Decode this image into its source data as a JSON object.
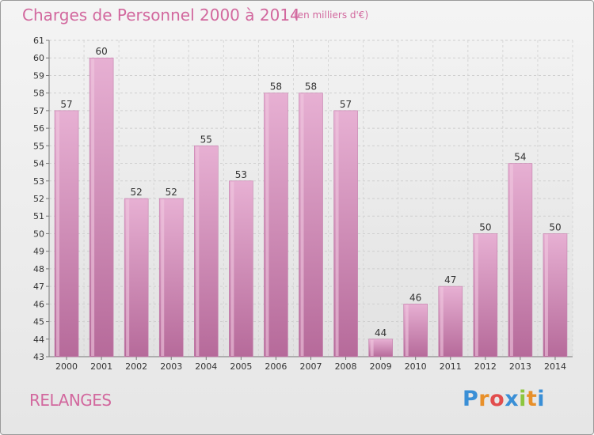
{
  "title": "Charges de Personnel 2000 à 2014",
  "unit_note": "(en milliers d'€)",
  "municipality": "RELANGES",
  "logo": {
    "letters": [
      "P",
      "r",
      "o",
      "x",
      "i",
      "t",
      "i"
    ],
    "colors": [
      "#3a8fd6",
      "#e8902a",
      "#e24d4d",
      "#3a8fd6",
      "#8cc63f",
      "#e8902a",
      "#3a8fd6"
    ]
  },
  "colors": {
    "bar": "#d98fbd",
    "bar_light": "#e7b0d3",
    "bar_dark": "#b66a9a",
    "text": "#d2689e"
  },
  "chart_data": {
    "type": "bar",
    "title": "Charges de Personnel 2000 à 2014",
    "subtitle": "(en milliers d'€)",
    "categories": [
      "2000",
      "2001",
      "2002",
      "2003",
      "2004",
      "2005",
      "2006",
      "2007",
      "2008",
      "2009",
      "2010",
      "2011",
      "2012",
      "2013",
      "2014"
    ],
    "values": [
      57,
      60,
      52,
      52,
      55,
      53,
      58,
      58,
      57,
      44,
      46,
      47,
      50,
      54,
      50
    ],
    "ylim": [
      43,
      61
    ],
    "yticks": [
      43,
      44,
      45,
      46,
      47,
      48,
      49,
      50,
      51,
      52,
      53,
      54,
      55,
      56,
      57,
      58,
      59,
      60,
      61
    ],
    "grid": true,
    "legend": "none"
  }
}
